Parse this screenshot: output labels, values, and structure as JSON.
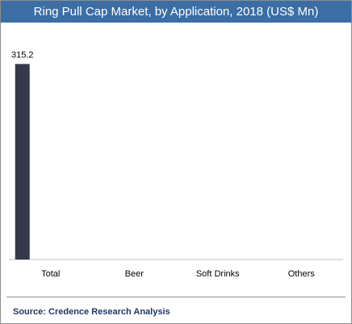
{
  "header": {
    "title": "Ring Pull Cap Market, by Application, 2018 (US$ Mn)"
  },
  "footer": {
    "source": "Source: Credence Research Analysis"
  },
  "colors": {
    "title_bar": "#3b6ea5",
    "bar": "#333a4a",
    "axis": "#bfbfbf",
    "source_text": "#1f3864"
  },
  "chart_data": {
    "type": "bar",
    "title": "Ring Pull Cap Market, by Application, 2018 (US$ Mn)",
    "categories": [
      "Total",
      "Beer",
      "Soft Drinks",
      "Others"
    ],
    "series": [
      {
        "values": [
          315.2,
          null,
          null,
          null
        ],
        "data_labels": [
          "315.2",
          "",
          "",
          ""
        ]
      }
    ],
    "ylim": [
      0,
      330
    ],
    "grid": false,
    "legend": "none"
  }
}
